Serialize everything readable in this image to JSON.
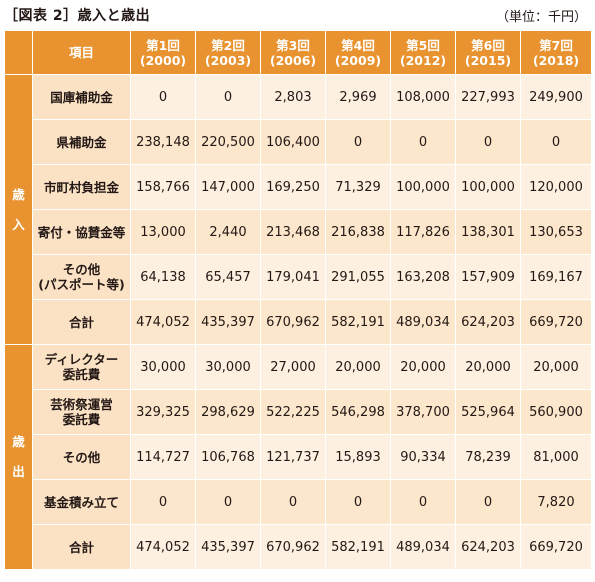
{
  "title": "［図表 2］歳入と歳出",
  "unit": "（単位：千円）",
  "header": {
    "item": "項目",
    "columns": [
      {
        "label": "第1回",
        "year": "(2000)"
      },
      {
        "label": "第2回",
        "year": "(2003)"
      },
      {
        "label": "第3回",
        "year": "(2006)"
      },
      {
        "label": "第4回",
        "year": "(2009)"
      },
      {
        "label": "第5回",
        "year": "(2012)"
      },
      {
        "label": "第6回",
        "year": "(2015)"
      },
      {
        "label": "第7回",
        "year": "(2018)"
      }
    ]
  },
  "sections": {
    "revenue": {
      "c1": "歳",
      "c2": "入"
    },
    "expenditure": {
      "c1": "歳",
      "c2": "出"
    }
  },
  "revenue_rows": [
    {
      "l1": "国庫補助金",
      "l2": "",
      "values": [
        "0",
        "0",
        "2,803",
        "2,969",
        "108,000",
        "227,993",
        "249,900"
      ]
    },
    {
      "l1": "県補助金",
      "l2": "",
      "values": [
        "238,148",
        "220,500",
        "106,400",
        "0",
        "0",
        "0",
        "0"
      ]
    },
    {
      "l1": "市町村負担金",
      "l2": "",
      "values": [
        "158,766",
        "147,000",
        "169,250",
        "71,329",
        "100,000",
        "100,000",
        "120,000"
      ]
    },
    {
      "l1": "寄付・協賛金等",
      "l2": "",
      "values": [
        "13,000",
        "2,440",
        "213,468",
        "216,838",
        "117,826",
        "138,301",
        "130,653"
      ]
    },
    {
      "l1": "その他",
      "l2": "(パスポート等)",
      "values": [
        "64,138",
        "65,457",
        "179,041",
        "291,055",
        "163,208",
        "157,909",
        "169,167"
      ]
    },
    {
      "l1": "合計",
      "l2": "",
      "values": [
        "474,052",
        "435,397",
        "670,962",
        "582,191",
        "489,034",
        "624,203",
        "669,720"
      ]
    }
  ],
  "expenditure_rows": [
    {
      "l1": "ディレクター",
      "l2": "委託費",
      "values": [
        "30,000",
        "30,000",
        "27,000",
        "20,000",
        "20,000",
        "20,000",
        "20,000"
      ]
    },
    {
      "l1": "芸術祭運営",
      "l2": "委託費",
      "values": [
        "329,325",
        "298,629",
        "522,225",
        "546,298",
        "378,700",
        "525,964",
        "560,900"
      ]
    },
    {
      "l1": "その他",
      "l2": "",
      "values": [
        "114,727",
        "106,768",
        "121,737",
        "15,893",
        "90,334",
        "78,239",
        "81,000"
      ]
    },
    {
      "l1": "基金積み立て",
      "l2": "",
      "values": [
        "0",
        "0",
        "0",
        "0",
        "0",
        "0",
        "7,820"
      ]
    },
    {
      "l1": "合計",
      "l2": "",
      "values": [
        "474,052",
        "435,397",
        "670,962",
        "582,191",
        "489,034",
        "624,203",
        "669,720"
      ]
    }
  ]
}
